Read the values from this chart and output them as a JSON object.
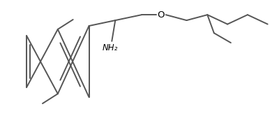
{
  "background_color": "#ffffff",
  "line_color": "#555555",
  "text_color": "#000000",
  "line_width": 1.4,
  "font_size": 8.5,
  "figsize": [
    3.87,
    1.86
  ],
  "dpi": 100,
  "nh2_label": "NH₂",
  "o_label": "O"
}
